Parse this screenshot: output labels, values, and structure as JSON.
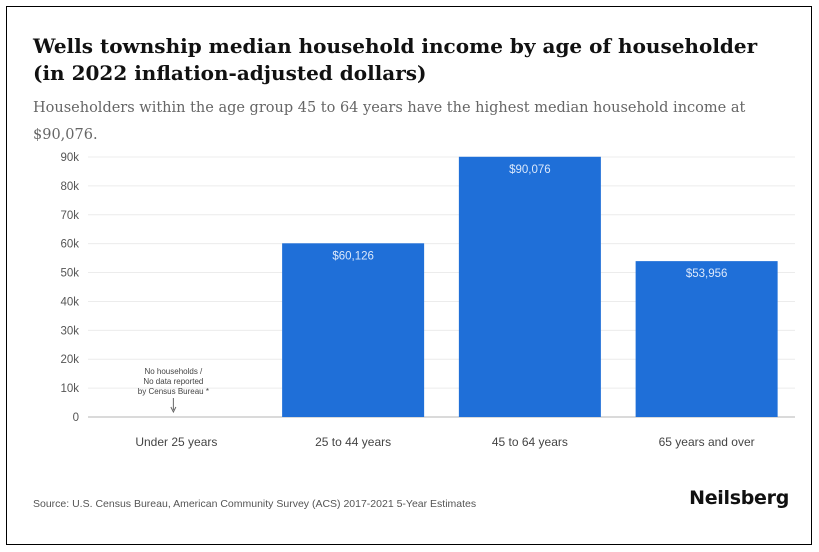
{
  "chart_data": {
    "type": "bar",
    "title": "Wells township median household income by age of householder (in 2022 inflation-adjusted dollars)",
    "subtitle": "Householders within the age group 45 to 64 years have the highest median household income at $90,076.",
    "categories": [
      "Under 25 years",
      "25 to 44 years",
      "45 to 64 years",
      "65 years and over"
    ],
    "values": [
      null,
      60126,
      90076,
      53956
    ],
    "data_labels": [
      "",
      "$60,126",
      "$90,076",
      "$53,956"
    ],
    "ylim": [
      0,
      90000
    ],
    "yticks": [
      0,
      10000,
      20000,
      30000,
      40000,
      50000,
      60000,
      70000,
      80000,
      90000
    ],
    "ytick_labels": [
      "0",
      "10k",
      "20k",
      "30k",
      "40k",
      "50k",
      "60k",
      "70k",
      "80k",
      "90k"
    ],
    "xlabel": "",
    "ylabel": "",
    "grid": true,
    "bar_color": "#1f6fd8",
    "annotation": {
      "category_index": 0,
      "lines": [
        "No households /",
        "No data reported",
        "by Census Bureau *"
      ]
    }
  },
  "footer": {
    "source": "Source: U.S. Census Bureau, American Community Survey (ACS) 2017-2021 5-Year Estimates",
    "brand": "Neilsberg"
  }
}
